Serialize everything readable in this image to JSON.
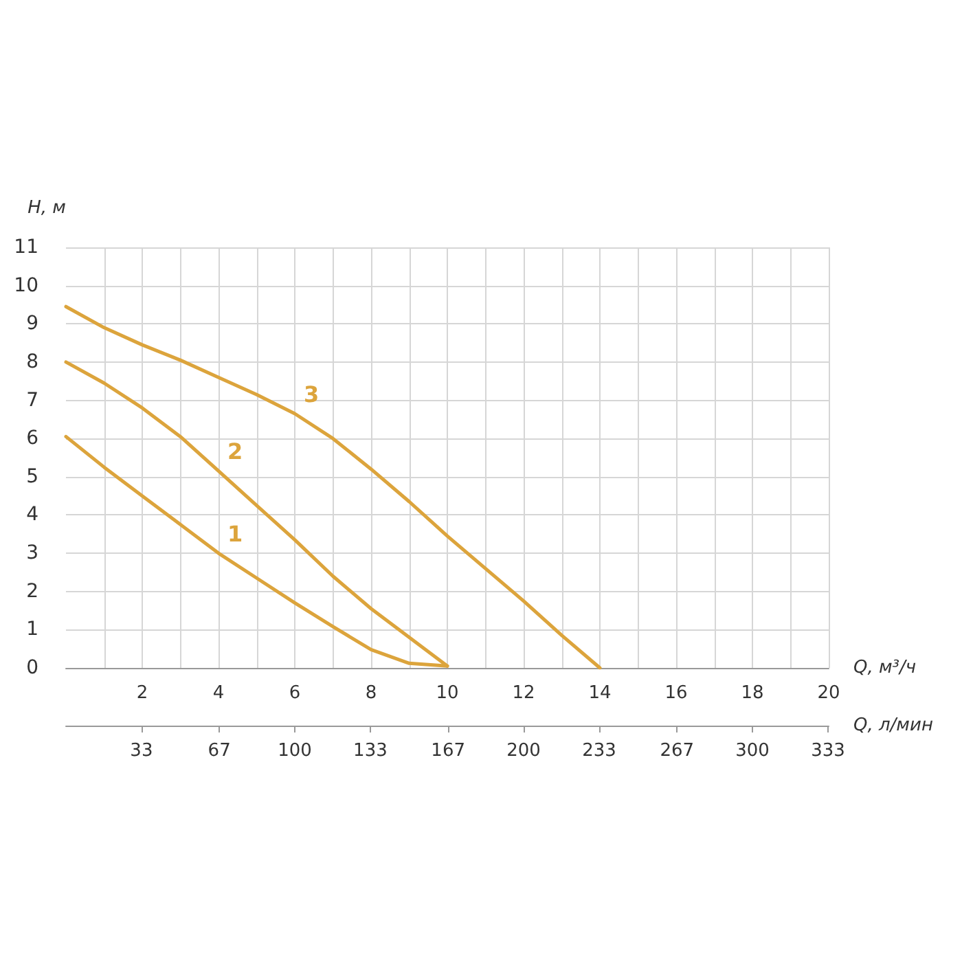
{
  "chart_data": {
    "type": "line",
    "xlabel": "Q, м³/ч",
    "ylabel": "H, м",
    "x2label": "Q, л/мин",
    "series": [
      {
        "color": "#dca43c",
        "x": [
          0,
          1,
          2,
          3,
          4,
          5,
          6,
          7,
          8,
          9,
          10
        ],
        "values": [
          6.05,
          5.25,
          4.5,
          3.75,
          3.0,
          2.35,
          1.7,
          1.08,
          0.48,
          0.12,
          0.05
        ]
      },
      {
        "color": "#dca43c",
        "x": [
          0,
          1,
          2,
          3,
          4,
          5,
          6,
          7,
          8,
          9,
          10
        ],
        "values": [
          8.0,
          7.45,
          6.8,
          6.05,
          5.15,
          4.25,
          3.35,
          2.4,
          1.55,
          0.8,
          0.05
        ]
      },
      {
        "color": "#dca43c",
        "x": [
          0,
          1,
          2,
          3,
          4,
          5,
          6,
          7,
          8,
          9,
          10,
          11,
          12,
          13,
          14
        ],
        "values": [
          9.45,
          8.9,
          8.45,
          8.05,
          7.6,
          7.15,
          6.65,
          6.0,
          5.2,
          4.35,
          3.45,
          2.6,
          1.75,
          0.85,
          0
        ]
      }
    ],
    "xlim": [
      0,
      20
    ],
    "xticks": [
      {
        "value": 1,
        "label": null
      },
      2,
      {
        "value": 3,
        "label": null
      },
      4,
      {
        "value": 5,
        "label": null
      },
      6,
      {
        "value": 7,
        "label": null
      },
      8,
      {
        "value": 9,
        "label": null
      },
      10,
      {
        "value": 11,
        "label": null
      },
      12,
      {
        "value": 13,
        "label": null
      },
      14,
      {
        "value": 15,
        "label": null
      },
      16,
      {
        "value": 17,
        "label": null
      },
      18,
      {
        "value": 19,
        "label": null
      },
      20
    ],
    "ylim": [
      0,
      11
    ],
    "yticks": [
      0,
      1,
      2,
      3,
      4,
      5,
      6,
      7,
      8,
      9,
      10,
      11
    ],
    "x2lim": [
      0,
      333.3
    ],
    "x2ticks": [
      33,
      67,
      100,
      133,
      167,
      200,
      233,
      267,
      300,
      333
    ],
    "annotations": [
      "1",
      "2",
      "3"
    ],
    "grid": true,
    "marker": "none",
    "line_style": "solid"
  }
}
